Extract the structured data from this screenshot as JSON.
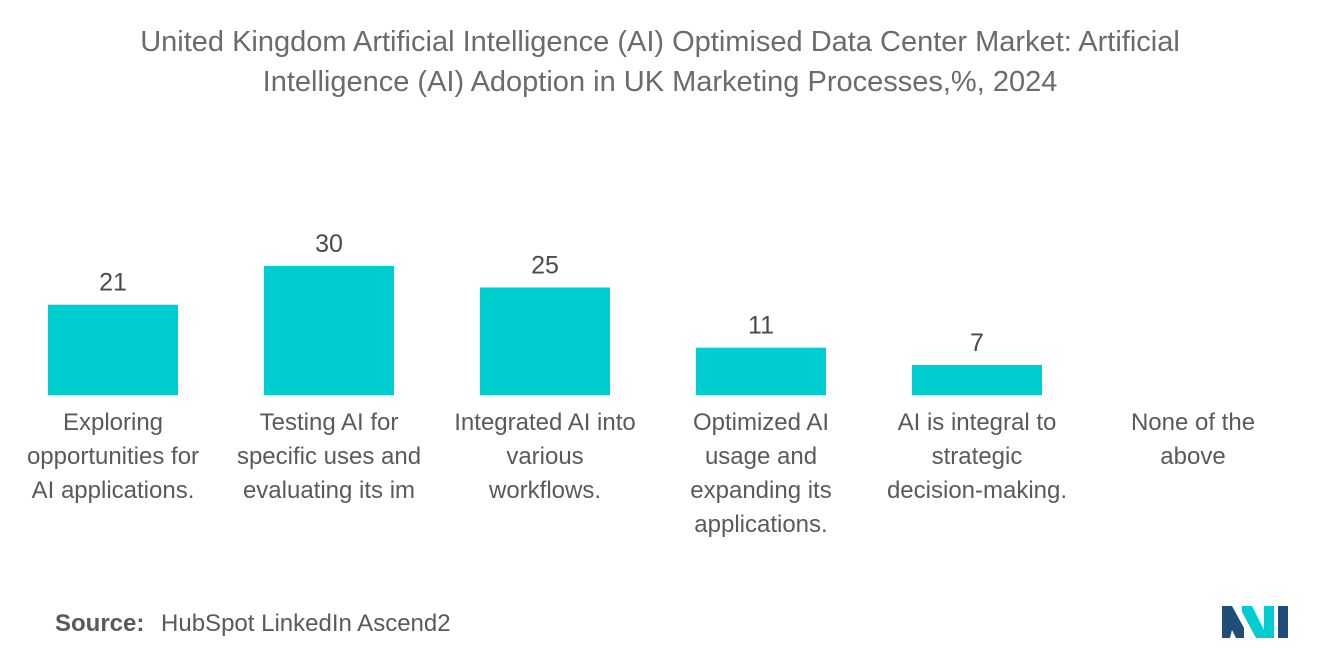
{
  "title_lines": [
    "United Kingdom Artificial Intelligence (AI) Optimised Data Center Market: Artificial",
    "Intelligence (AI) Adoption in UK Marketing Processes,%, 2024"
  ],
  "chart_data": {
    "type": "bar",
    "title": "United Kingdom Artificial Intelligence (AI) Optimised Data Center Market: Artificial Intelligence (AI) Adoption in UK Marketing Processes,%, 2024",
    "categories": [
      "Exploring opportunities for AI applications.",
      "Testing AI for specific uses and evaluating its im",
      "Integrated AI into various workflows.",
      "Optimized AI usage and expanding its applications.",
      "AI is integral to strategic decision-making.",
      "None of the above"
    ],
    "category_lines": [
      [
        "Exploring",
        "opportunities for",
        "AI applications."
      ],
      [
        "Testing AI for",
        "specific uses and",
        "evaluating its im"
      ],
      [
        "Integrated AI into",
        "various",
        "workflows."
      ],
      [
        "Optimized AI",
        "usage and",
        "expanding its",
        "applications."
      ],
      [
        "AI is integral to",
        "strategic",
        "decision-making."
      ],
      [
        "None of the",
        "above"
      ]
    ],
    "values": [
      21,
      30,
      25,
      11,
      7,
      null
    ],
    "value_labels": [
      "21",
      "30",
      "25",
      "11",
      "7",
      ""
    ],
    "bar_color": "#00cdd0",
    "xlabel": "",
    "ylabel": "",
    "ylim": [
      0,
      30
    ],
    "grid": false,
    "legend": "none"
  },
  "source": {
    "label": "Source:",
    "text": "HubSpot LinkedIn Ascend2"
  },
  "logo_colors": [
    "#1f4e79",
    "#00cdd0"
  ]
}
